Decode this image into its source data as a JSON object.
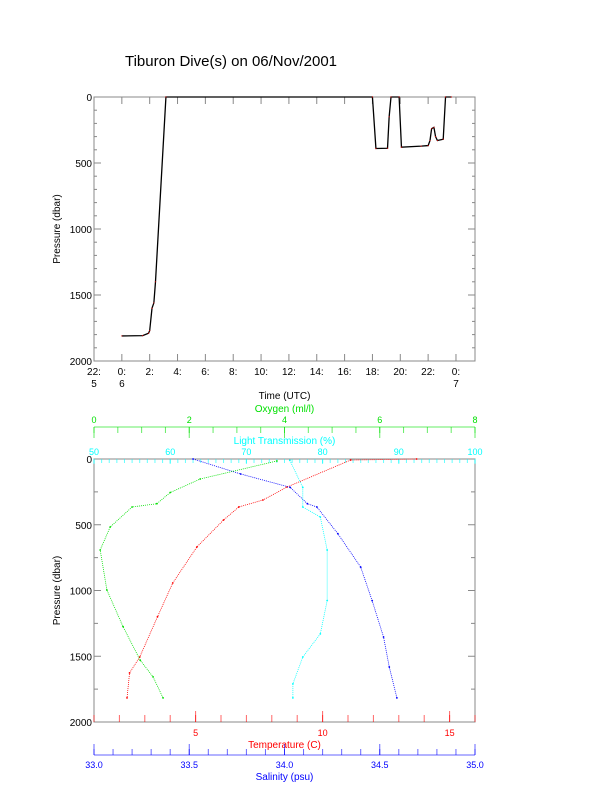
{
  "title": "Tiburon Dive(s) on 06/Nov/2001",
  "chart_data": [
    {
      "type": "line",
      "xlabel": "Time (UTC)",
      "ylabel": "Pressure (dbar)",
      "xlim": [
        "2001-11-05T22:00",
        "2001-11-07T01:22"
      ],
      "ylim": [
        2000,
        0
      ],
      "y_reversed": true,
      "yticks": [
        0,
        500,
        1000,
        1500,
        2000
      ],
      "xticks": [
        {
          "t": "2001-11-05T22:00",
          "l1": "22:",
          "l2": "5"
        },
        {
          "t": "2001-11-06T00:00",
          "l1": "0:",
          "l2": "6"
        },
        {
          "t": "2001-11-06T02:00",
          "l1": "2:",
          "l2": ""
        },
        {
          "t": "2001-11-06T04:00",
          "l1": "4:",
          "l2": ""
        },
        {
          "t": "2001-11-06T06:00",
          "l1": "6:",
          "l2": ""
        },
        {
          "t": "2001-11-06T08:00",
          "l1": "8:",
          "l2": ""
        },
        {
          "t": "2001-11-06T10:00",
          "l1": "10:",
          "l2": ""
        },
        {
          "t": "2001-11-06T12:00",
          "l1": "12:",
          "l2": ""
        },
        {
          "t": "2001-11-06T14:00",
          "l1": "14:",
          "l2": ""
        },
        {
          "t": "2001-11-06T16:00",
          "l1": "16:",
          "l2": ""
        },
        {
          "t": "2001-11-06T18:00",
          "l1": "18:",
          "l2": ""
        },
        {
          "t": "2001-11-06T20:00",
          "l1": "20:",
          "l2": ""
        },
        {
          "t": "2001-11-06T22:00",
          "l1": "22:",
          "l2": ""
        },
        {
          "t": "2001-11-07T00:00",
          "l1": "0:",
          "l2": "7"
        }
      ],
      "color": "#000000",
      "points": [
        [
          "2001-11-06T00:00",
          1810
        ],
        [
          "2001-11-06T01:30",
          1808
        ],
        [
          "2001-11-06T01:55",
          1790
        ],
        [
          "2001-11-06T02:00",
          1770
        ],
        [
          "2001-11-06T02:10",
          1600
        ],
        [
          "2001-11-06T02:18",
          1560
        ],
        [
          "2001-11-06T02:25",
          1400
        ],
        [
          "2001-11-06T03:10",
          0
        ],
        [
          "2001-11-06T18:00",
          0
        ],
        [
          "2001-11-06T18:15",
          390
        ],
        [
          "2001-11-06T19:05",
          388
        ],
        [
          "2001-11-06T19:12",
          150
        ],
        [
          "2001-11-06T19:20",
          0
        ],
        [
          "2001-11-06T19:55",
          0
        ],
        [
          "2001-11-06T20:05",
          380
        ],
        [
          "2001-11-06T21:30",
          372
        ],
        [
          "2001-11-06T22:00",
          368
        ],
        [
          "2001-11-06T22:08",
          330
        ],
        [
          "2001-11-06T22:15",
          240
        ],
        [
          "2001-11-06T22:25",
          230
        ],
        [
          "2001-11-06T22:32",
          300
        ],
        [
          "2001-11-06T22:40",
          330
        ],
        [
          "2001-11-06T23:05",
          320
        ],
        [
          "2001-11-06T23:15",
          0
        ],
        [
          "2001-11-06T23:40",
          0
        ]
      ]
    },
    {
      "type": "scatter",
      "ylabel": "Pressure (dbar)",
      "ylim": [
        2000,
        0
      ],
      "y_reversed": true,
      "yticks": [
        0,
        500,
        1000,
        1500,
        2000
      ],
      "axes": [
        {
          "key": "oxygen",
          "label": "Oxygen (ml/l)",
          "position": "top",
          "range": [
            0,
            8
          ],
          "ticks": [
            0,
            2,
            4,
            6,
            8
          ],
          "minor": 0.5,
          "color": "#00e000"
        },
        {
          "key": "transmission",
          "label": "Light Transmission (%)",
          "position": "top",
          "range": [
            50,
            100
          ],
          "ticks": [
            50,
            60,
            70,
            80,
            90,
            100
          ],
          "minor": 1,
          "color": "#00ffff"
        },
        {
          "key": "temperature",
          "label": "Temperature (C)",
          "position": "bottom",
          "range": [
            1,
            16
          ],
          "ticks": [
            5,
            10,
            15
          ],
          "minor": 1,
          "color": "#ff0000"
        },
        {
          "key": "salinity",
          "label": "Salinity (psu)",
          "position": "bottom",
          "range": [
            33.0,
            35.0
          ],
          "ticks": [
            "33.0",
            "33.5",
            "34.0",
            "34.5",
            "35.0"
          ],
          "minor": 0.1,
          "color": "#0000ff"
        }
      ],
      "series": [
        {
          "key": "temperature",
          "color": "#ff0000",
          "points": [
            [
              13.7,
              0
            ],
            [
              11.1,
              8
            ],
            [
              8.6,
              213
            ],
            [
              7.65,
              312
            ],
            [
              6.7,
              365
            ],
            [
              6.1,
              464
            ],
            [
              5.05,
              669
            ],
            [
              4.1,
              943
            ],
            [
              3.5,
              1200
            ],
            [
              2.8,
              1506
            ],
            [
              2.4,
              1627
            ],
            [
              2.3,
              1817
            ]
          ]
        },
        {
          "key": "salinity",
          "color": "#0000ff",
          "points": [
            [
              33.52,
              0
            ],
            [
              33.77,
              114
            ],
            [
              34.03,
              216
            ],
            [
              34.12,
              340
            ],
            [
              34.17,
              365
            ],
            [
              34.28,
              568
            ],
            [
              34.4,
              822
            ],
            [
              34.46,
              1077
            ],
            [
              34.52,
              1354
            ],
            [
              34.55,
              1582
            ],
            [
              34.59,
              1817
            ]
          ]
        },
        {
          "key": "oxygen",
          "color": "#00e000",
          "points": [
            [
              3.84,
              15
            ],
            [
              2.23,
              152
            ],
            [
              1.6,
              255
            ],
            [
              1.32,
              340
            ],
            [
              0.8,
              365
            ],
            [
              0.34,
              517
            ],
            [
              0.13,
              692
            ],
            [
              0.27,
              996
            ],
            [
              0.61,
              1275
            ],
            [
              0.97,
              1530
            ],
            [
              1.24,
              1657
            ],
            [
              1.45,
              1817
            ]
          ]
        },
        {
          "key": "transmission",
          "color": "#00ffff",
          "points": [
            [
              75.7,
              10
            ],
            [
              77.4,
              216
            ],
            [
              77.4,
              365
            ],
            [
              79.7,
              441
            ],
            [
              80.6,
              692
            ],
            [
              80.6,
              1077
            ],
            [
              79.7,
              1330
            ],
            [
              77.4,
              1506
            ],
            [
              76.1,
              1710
            ],
            [
              76.1,
              1817
            ]
          ]
        }
      ]
    }
  ]
}
